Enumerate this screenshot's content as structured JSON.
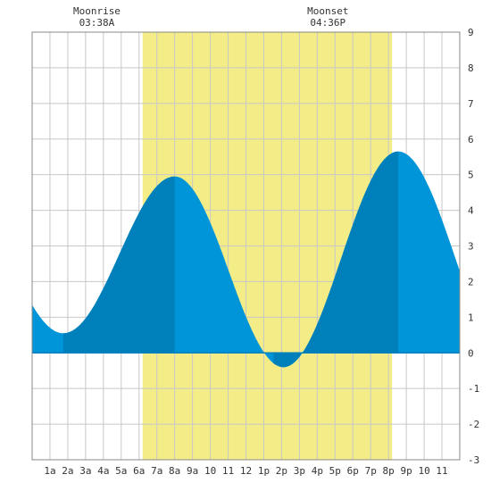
{
  "chart_data": {
    "type": "area",
    "title": "",
    "xlabel": "",
    "ylabel": "",
    "xlim": [
      0,
      24
    ],
    "ylim": [
      -3,
      9
    ],
    "grid": true,
    "x_ticks": [
      1,
      2,
      3,
      4,
      5,
      6,
      7,
      8,
      9,
      10,
      11,
      12,
      13,
      14,
      15,
      16,
      17,
      18,
      19,
      20,
      21,
      22,
      23
    ],
    "x_tick_labels": [
      "1a",
      "2a",
      "3a",
      "4a",
      "5a",
      "6a",
      "7a",
      "8a",
      "9a",
      "10",
      "11",
      "12",
      "1p",
      "2p",
      "3p",
      "4p",
      "5p",
      "6p",
      "7p",
      "8p",
      "9p",
      "10",
      "11"
    ],
    "y_ticks": [
      -3,
      -2,
      -1,
      0,
      1,
      2,
      3,
      4,
      5,
      6,
      7,
      8,
      9
    ],
    "y_tick_labels": [
      "-3",
      "-2",
      "-1",
      "0",
      "1",
      "2",
      "3",
      "4",
      "5",
      "6",
      "7",
      "8",
      "9"
    ],
    "extremes": [
      {
        "type": "low",
        "time": 1.75,
        "value": 0.55
      },
      {
        "type": "high",
        "time": 8.0,
        "value": 4.95
      },
      {
        "type": "low",
        "time": 14.1,
        "value": -0.4
      },
      {
        "type": "high",
        "time": 20.55,
        "value": 5.65
      }
    ],
    "curve_start": {
      "time": 0,
      "value": 1.45
    },
    "curve_end": {
      "time": 24,
      "value": 2.6
    },
    "daylight": {
      "start": 6.2,
      "end": 20.2,
      "color": "#f3ec87"
    },
    "colors": {
      "tide": "#0095d9",
      "tide_dark": "#0080ba",
      "grid": "#c8c8c8",
      "zero_line": "#0080ba"
    },
    "annotations": [
      {
        "name": "moonrise",
        "label": "Moonrise",
        "time_text": "03:38A",
        "time": 3.63
      },
      {
        "name": "moonset",
        "label": "Moonset",
        "time_text": "04:36P",
        "time": 16.6
      }
    ]
  }
}
